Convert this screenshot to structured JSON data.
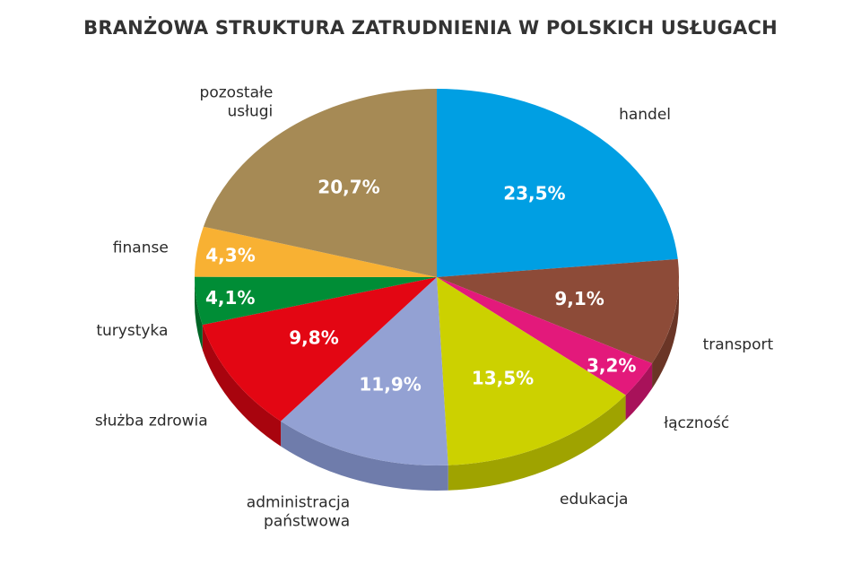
{
  "chart_data": {
    "type": "pie",
    "title": "BRANŻOWA STRUKTURA ZATRUDNIENIA W POLSKICH USŁUGACH",
    "unit": "%",
    "slices": [
      {
        "category": [
          "handel"
        ],
        "value": 23.5,
        "value_label": "23,5%",
        "color": "#009fe3",
        "side_color": "#0077ab"
      },
      {
        "category": [
          "transport"
        ],
        "value": 9.1,
        "value_label": "9,1%",
        "color": "#8d4b38",
        "side_color": "#6a3526"
      },
      {
        "category": [
          "łączność"
        ],
        "value": 3.2,
        "value_label": "3,2%",
        "color": "#e3197b",
        "side_color": "#a8125a"
      },
      {
        "category": [
          "edukacja"
        ],
        "value": 13.5,
        "value_label": "13,5%",
        "color": "#ccd100",
        "side_color": "#9fa300"
      },
      {
        "category": [
          "administracja",
          "państwowa"
        ],
        "value": 11.9,
        "value_label": "11,9%",
        "color": "#93a1d3",
        "side_color": "#6f7cab"
      },
      {
        "category": [
          "służba zdrowia"
        ],
        "value": 9.8,
        "value_label": "9,8%",
        "color": "#e30613",
        "side_color": "#a8040e"
      },
      {
        "category": [
          "turystyka"
        ],
        "value": 4.1,
        "value_label": "4,1%",
        "color": "#008d36",
        "side_color": "#006526"
      },
      {
        "category": [
          "finanse"
        ],
        "value": 4.3,
        "value_label": "4,3%",
        "color": "#f8b133",
        "side_color": "#c48620"
      },
      {
        "category": [
          "pozostałe",
          "usługi"
        ],
        "value": 20.7,
        "value_label": "20,7%",
        "color": "#a68a55",
        "side_color": "#7d683f"
      }
    ]
  }
}
